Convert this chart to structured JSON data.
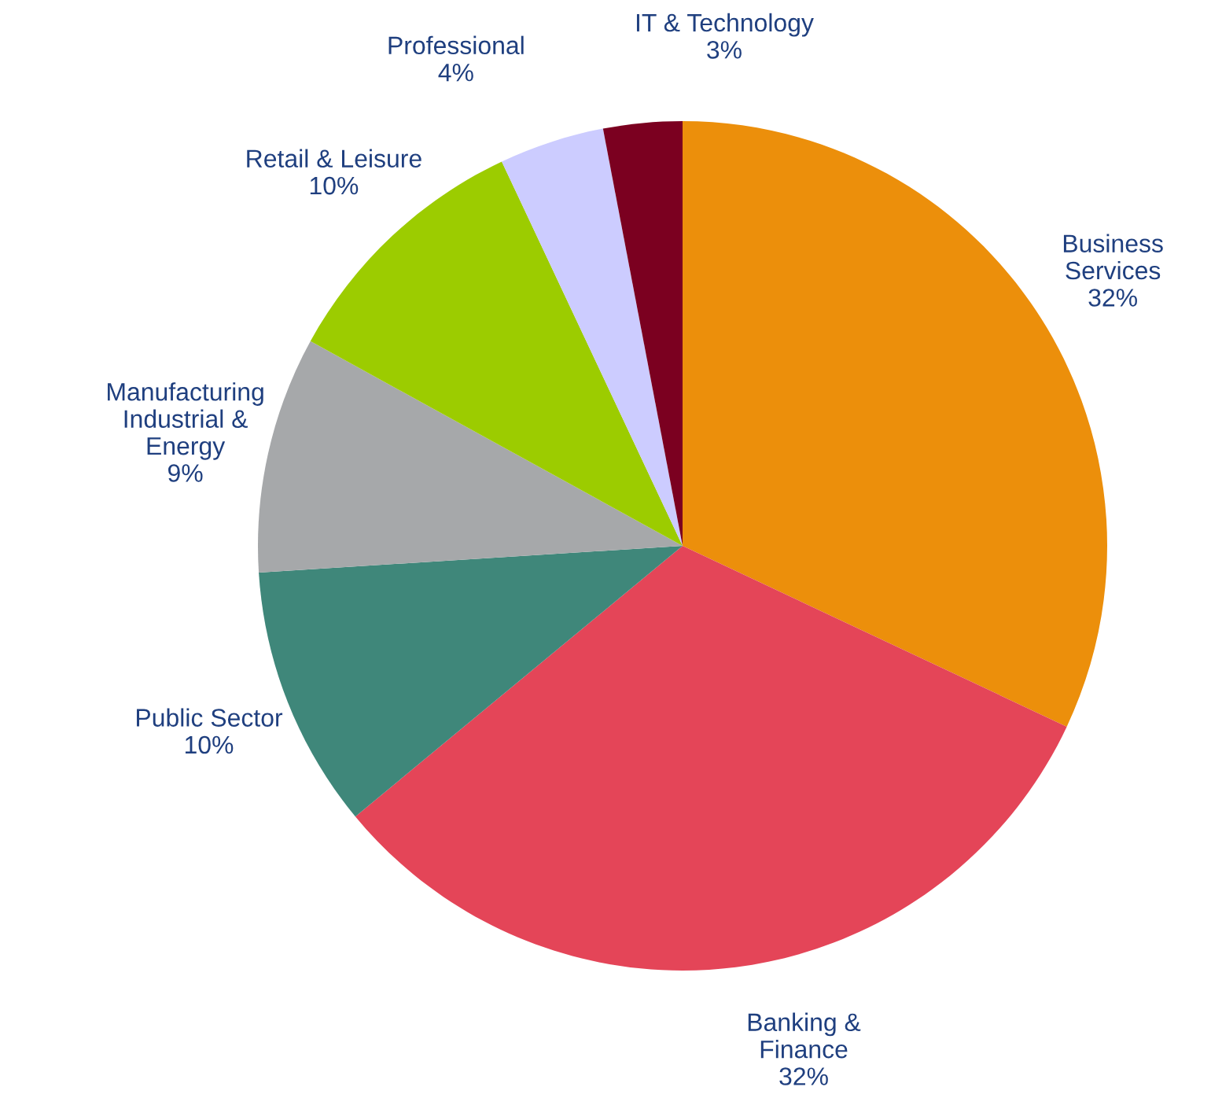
{
  "chart_data": {
    "type": "pie",
    "categories": [
      "Business\nServices",
      "Banking &\nFinance",
      "Public Sector",
      "Manufacturing\nIndustrial &\nEnergy",
      "Retail & Leisure",
      "Professional",
      "IT & Technology"
    ],
    "values": [
      32,
      32,
      10,
      9,
      10,
      4,
      3
    ],
    "colors": [
      "#ec8f0b",
      "#e44558",
      "#3f877a",
      "#a6a8aa",
      "#9ccc00",
      "#ccccff",
      "#7b0020"
    ],
    "data_labels": true,
    "value_labels": [
      "32%",
      "32%",
      "10%",
      "9%",
      "10%",
      "4%",
      "3%"
    ]
  }
}
